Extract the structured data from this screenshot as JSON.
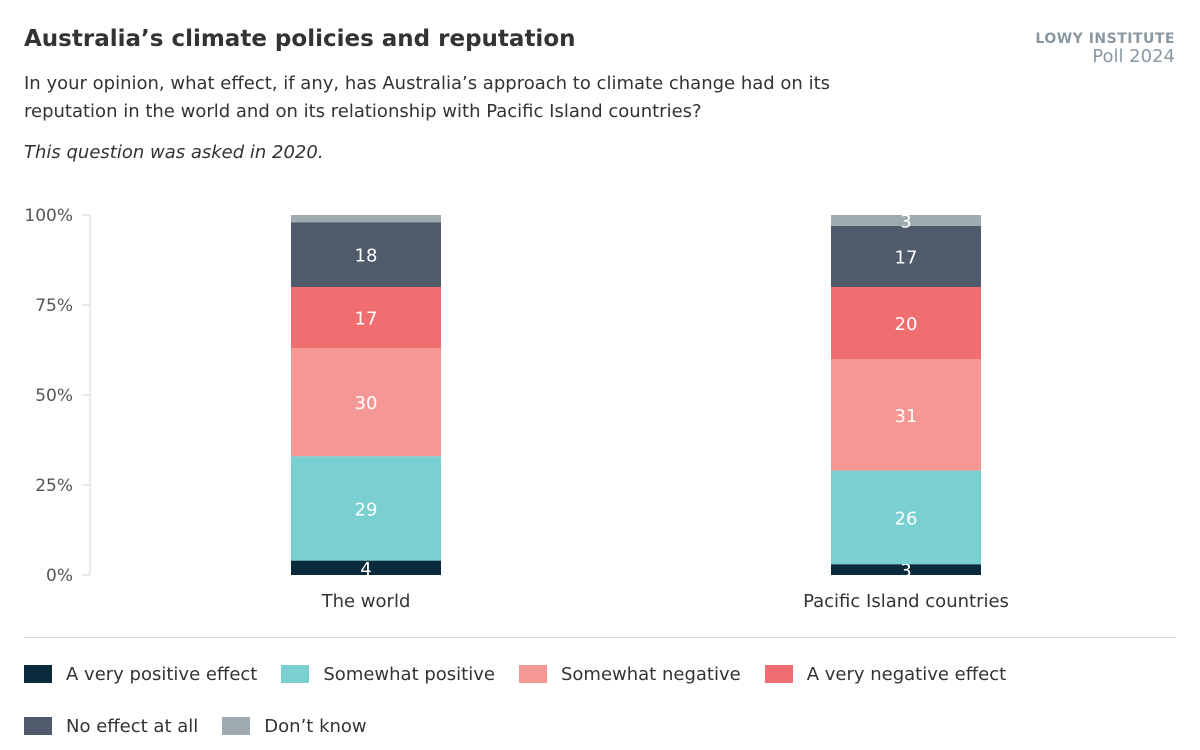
{
  "header": {
    "title": "Australia’s climate policies and reputation",
    "brand_line1": "LOWY INSTITUTE",
    "brand_line2": "Poll 2024",
    "subtitle": "In your opinion, what effect, if any, has Australia’s approach to climate change had on its reputation in the world and on its relationship with Pacific Island countries?",
    "note": "This question was asked in 2020."
  },
  "chart_data": {
    "type": "bar",
    "stacked": true,
    "categories": [
      "The world",
      "Pacific Island countries"
    ],
    "ylim": [
      0,
      100
    ],
    "yticks": [
      "0%",
      "25%",
      "50%",
      "75%",
      "100%"
    ],
    "grid": false,
    "legend_position": "bottom",
    "series": [
      {
        "name": "A very positive effect",
        "color": "#0b2a3c",
        "values": [
          4,
          3
        ],
        "labels": [
          "4",
          "3"
        ]
      },
      {
        "name": "Somewhat positive",
        "color": "#7acfd1",
        "values": [
          29,
          26
        ],
        "labels": [
          "29",
          "26"
        ]
      },
      {
        "name": "Somewhat negative",
        "color": "#f59794",
        "values": [
          30,
          31
        ],
        "labels": [
          "30",
          "31"
        ]
      },
      {
        "name": "A very negative effect",
        "color": "#f06e6f",
        "values": [
          17,
          20
        ],
        "labels": [
          "17",
          "20"
        ]
      },
      {
        "name": "No effect at all",
        "color": "#4f5b6b",
        "values": [
          18,
          17
        ],
        "labels": [
          "18",
          "17"
        ]
      },
      {
        "name": "Don’t know",
        "color": "#9eacb2",
        "values": [
          2,
          3
        ],
        "labels": [
          "",
          "3"
        ]
      }
    ]
  }
}
